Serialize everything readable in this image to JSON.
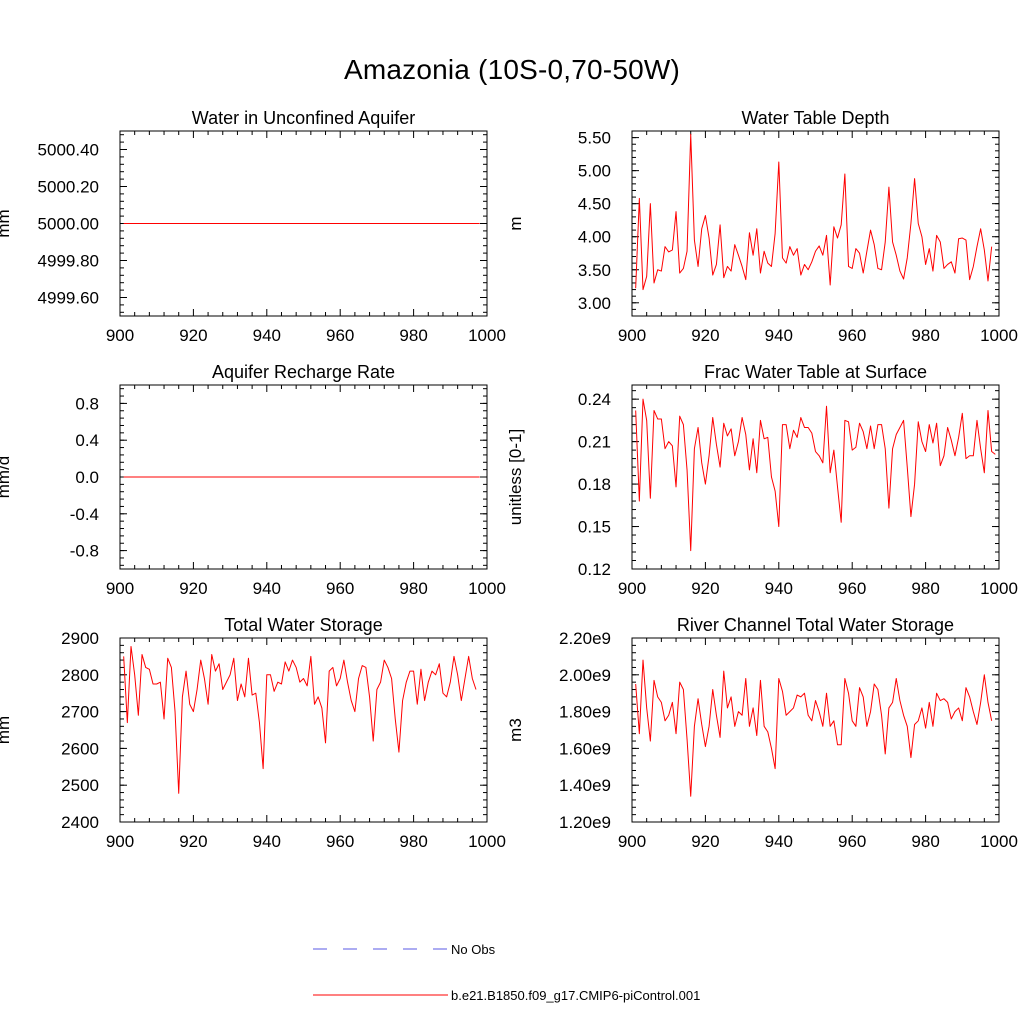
{
  "title": "Amazonia (10S-0,70-50W)",
  "colors": {
    "model": "#ff0000",
    "obs": "#5a5ae6",
    "axes": "#000000"
  },
  "legend": [
    {
      "label": "No Obs",
      "style": "dashed",
      "color": "#5a5ae6"
    },
    {
      "label": "b.e21.B1850.f09_g17.CMIP6-piControl.001",
      "style": "solid",
      "color": "#ff0000"
    }
  ],
  "chart_data": [
    {
      "type": "line",
      "title": "Water in Unconfined Aquifer",
      "ylabel": "mm",
      "xlim": [
        900,
        1000
      ],
      "ylim": [
        4999.5,
        5000.5
      ],
      "xticks": [
        900,
        920,
        940,
        960,
        980,
        1000
      ],
      "yticks": [
        4999.6,
        4999.8,
        5000.0,
        5000.2,
        5000.4
      ],
      "ytick_labels": [
        "4999.60",
        "4999.80",
        "5000.00",
        "5000.20",
        "5000.40"
      ],
      "x_start": 901,
      "series": [
        {
          "values": [
            5000,
            5000,
            5000,
            5000,
            5000,
            5000,
            5000,
            5000,
            5000,
            5000,
            5000,
            5000,
            5000,
            5000,
            5000,
            5000,
            5000,
            5000,
            5000,
            5000,
            5000,
            5000,
            5000,
            5000,
            5000,
            5000,
            5000,
            5000,
            5000,
            5000,
            5000,
            5000,
            5000,
            5000,
            5000,
            5000,
            5000,
            5000,
            5000,
            5000,
            5000,
            5000,
            5000,
            5000,
            5000,
            5000,
            5000,
            5000,
            5000,
            5000,
            5000,
            5000,
            5000,
            5000,
            5000,
            5000,
            5000,
            5000,
            5000,
            5000,
            5000,
            5000,
            5000,
            5000,
            5000,
            5000,
            5000,
            5000,
            5000,
            5000,
            5000,
            5000,
            5000,
            5000,
            5000,
            5000,
            5000,
            5000,
            5000,
            5000,
            5000,
            5000,
            5000,
            5000,
            5000,
            5000,
            5000,
            5000,
            5000,
            5000,
            5000,
            5000,
            5000,
            5000,
            5000,
            5000,
            5000,
            5000
          ]
        }
      ]
    },
    {
      "type": "line",
      "title": "Water Table Depth",
      "ylabel": "m",
      "xlim": [
        900,
        1000
      ],
      "ylim": [
        2.8,
        5.6
      ],
      "xticks": [
        900,
        920,
        940,
        960,
        980,
        1000
      ],
      "yticks": [
        3.0,
        3.5,
        4.0,
        4.5,
        5.0,
        5.5
      ],
      "ytick_labels": [
        "3.00",
        "3.50",
        "4.00",
        "4.50",
        "5.00",
        "5.50"
      ],
      "x_start": 901,
      "series": [
        {
          "values": [
            3.22,
            4.58,
            3.2,
            3.4,
            4.5,
            3.3,
            3.5,
            3.48,
            3.85,
            3.77,
            3.8,
            4.38,
            3.45,
            3.52,
            3.78,
            5.55,
            3.95,
            3.55,
            4.12,
            4.32,
            3.98,
            3.42,
            3.58,
            4.18,
            3.38,
            3.55,
            3.48,
            3.88,
            3.72,
            3.55,
            3.35,
            4.06,
            3.72,
            4.12,
            3.45,
            3.78,
            3.6,
            3.55,
            4.05,
            5.13,
            3.68,
            3.6,
            3.85,
            3.72,
            3.82,
            3.42,
            3.58,
            3.5,
            3.62,
            3.78,
            3.86,
            3.72,
            4.02,
            3.27,
            4.15,
            3.98,
            4.18,
            4.95,
            3.55,
            3.52,
            3.82,
            3.75,
            3.45,
            3.78,
            4.1,
            3.88,
            3.52,
            3.5,
            3.92,
            4.75,
            3.92,
            3.72,
            3.48,
            3.36,
            3.68,
            4.2,
            4.88,
            4.2,
            4.0,
            3.58,
            3.82,
            3.48,
            4.02,
            3.92,
            3.52,
            3.58,
            3.62,
            3.45,
            3.97,
            3.98,
            3.95,
            3.35,
            3.55,
            3.85,
            4.12,
            3.8,
            3.33,
            3.85
          ]
        }
      ]
    },
    {
      "type": "line",
      "title": "Aquifer Recharge Rate",
      "ylabel": "mm/d",
      "xlim": [
        900,
        1000
      ],
      "ylim": [
        -1.0,
        1.0
      ],
      "xticks": [
        900,
        920,
        940,
        960,
        980,
        1000
      ],
      "yticks": [
        -0.8,
        -0.4,
        0.0,
        0.4,
        0.8
      ],
      "ytick_labels": [
        "-0.8",
        "-0.4",
        "0.0",
        "0.4",
        "0.8"
      ],
      "x_start": 901,
      "series": [
        {
          "values": [
            0,
            0,
            0,
            0,
            0,
            0,
            0,
            0,
            0,
            0,
            0,
            0,
            0,
            0,
            0,
            0,
            0,
            0,
            0,
            0,
            0,
            0,
            0,
            0,
            0,
            0,
            0,
            0,
            0,
            0,
            0,
            0,
            0,
            0,
            0,
            0,
            0,
            0,
            0,
            0,
            0,
            0,
            0,
            0,
            0,
            0,
            0,
            0,
            0,
            0,
            0,
            0,
            0,
            0,
            0,
            0,
            0,
            0,
            0,
            0,
            0,
            0,
            0,
            0,
            0,
            0,
            0,
            0,
            0,
            0,
            0,
            0,
            0,
            0,
            0,
            0,
            0,
            0,
            0,
            0,
            0,
            0,
            0,
            0,
            0,
            0,
            0,
            0,
            0,
            0,
            0,
            0,
            0,
            0,
            0,
            0,
            0,
            0
          ]
        }
      ]
    },
    {
      "type": "line",
      "title": "Frac Water Table at Surface",
      "ylabel": "unitless [0-1]",
      "xlim": [
        900,
        1000
      ],
      "ylim": [
        0.12,
        0.25
      ],
      "xticks": [
        900,
        920,
        940,
        960,
        980,
        1000
      ],
      "yticks": [
        0.12,
        0.15,
        0.18,
        0.21,
        0.24
      ],
      "ytick_labels": [
        "0.12",
        "0.15",
        "0.18",
        "0.21",
        "0.24"
      ],
      "x_start": 901,
      "series": [
        {
          "values": [
            0.232,
            0.168,
            0.24,
            0.225,
            0.17,
            0.232,
            0.226,
            0.226,
            0.205,
            0.21,
            0.207,
            0.178,
            0.228,
            0.222,
            0.19,
            0.133,
            0.205,
            0.22,
            0.195,
            0.18,
            0.2,
            0.227,
            0.208,
            0.192,
            0.223,
            0.214,
            0.219,
            0.2,
            0.21,
            0.227,
            0.215,
            0.19,
            0.212,
            0.188,
            0.225,
            0.212,
            0.213,
            0.185,
            0.175,
            0.15,
            0.222,
            0.222,
            0.205,
            0.218,
            0.213,
            0.227,
            0.22,
            0.22,
            0.216,
            0.203,
            0.2,
            0.195,
            0.235,
            0.188,
            0.204,
            0.178,
            0.153,
            0.225,
            0.224,
            0.204,
            0.206,
            0.223,
            0.217,
            0.205,
            0.221,
            0.205,
            0.222,
            0.222,
            0.205,
            0.163,
            0.205,
            0.215,
            0.22,
            0.225,
            0.192,
            0.157,
            0.18,
            0.224,
            0.21,
            0.203,
            0.222,
            0.209,
            0.223,
            0.193,
            0.2,
            0.22,
            0.211,
            0.2,
            0.213,
            0.23,
            0.198,
            0.2,
            0.2,
            0.225,
            0.205,
            0.188,
            0.232,
            0.203,
            0.201
          ]
        }
      ]
    },
    {
      "type": "line",
      "title": "Total Water Storage",
      "ylabel": "mm",
      "xlim": [
        900,
        1000
      ],
      "ylim": [
        2400,
        2900
      ],
      "xticks": [
        900,
        920,
        940,
        960,
        980,
        1000
      ],
      "yticks": [
        2400,
        2500,
        2600,
        2700,
        2800,
        2900
      ],
      "ytick_labels": [
        "2400",
        "2500",
        "2600",
        "2700",
        "2800",
        "2900"
      ],
      "x_start": 901,
      "series": [
        {
          "values": [
            2850,
            2670,
            2877,
            2800,
            2690,
            2855,
            2820,
            2815,
            2775,
            2775,
            2780,
            2680,
            2845,
            2820,
            2700,
            2478,
            2740,
            2810,
            2720,
            2700,
            2760,
            2840,
            2790,
            2720,
            2855,
            2810,
            2830,
            2760,
            2780,
            2800,
            2845,
            2730,
            2775,
            2740,
            2845,
            2745,
            2750,
            2670,
            2545,
            2800,
            2800,
            2755,
            2780,
            2775,
            2835,
            2810,
            2840,
            2820,
            2780,
            2790,
            2770,
            2850,
            2720,
            2740,
            2710,
            2615,
            2810,
            2820,
            2770,
            2790,
            2840,
            2780,
            2730,
            2700,
            2790,
            2825,
            2820,
            2740,
            2620,
            2760,
            2780,
            2840,
            2820,
            2790,
            2680,
            2590,
            2730,
            2780,
            2810,
            2810,
            2720,
            2815,
            2730,
            2780,
            2810,
            2800,
            2830,
            2750,
            2740,
            2780,
            2850,
            2800,
            2730,
            2790,
            2850,
            2790,
            2760
          ]
        }
      ]
    },
    {
      "type": "line",
      "title": "River Channel Total Water Storage",
      "ylabel": "m3",
      "xlim": [
        900,
        1000
      ],
      "ylim": [
        1200000000.0,
        2200000000.0
      ],
      "xticks": [
        900,
        920,
        940,
        960,
        980,
        1000
      ],
      "yticks": [
        1200000000.0,
        1400000000.0,
        1600000000.0,
        1800000000.0,
        2000000000.0,
        2200000000.0
      ],
      "ytick_labels": [
        "1.20e9",
        "1.40e9",
        "1.60e9",
        "1.80e9",
        "2.00e9",
        "2.20e9"
      ],
      "x_start": 901,
      "series": [
        {
          "values": [
            1950000000.0,
            1680000000.0,
            2080000000.0,
            1820000000.0,
            1640000000.0,
            1970000000.0,
            1880000000.0,
            1850000000.0,
            1750000000.0,
            1780000000.0,
            1850000000.0,
            1680000000.0,
            1960000000.0,
            1920000000.0,
            1650000000.0,
            1340000000.0,
            1720000000.0,
            1870000000.0,
            1730000000.0,
            1610000000.0,
            1720000000.0,
            1920000000.0,
            1780000000.0,
            1660000000.0,
            2020000000.0,
            1820000000.0,
            1880000000.0,
            1720000000.0,
            1800000000.0,
            1780000000.0,
            1980000000.0,
            1720000000.0,
            1820000000.0,
            1670000000.0,
            1970000000.0,
            1720000000.0,
            1690000000.0,
            1600000000.0,
            1490000000.0,
            1980000000.0,
            1910000000.0,
            1780000000.0,
            1800000000.0,
            1820000000.0,
            1890000000.0,
            1880000000.0,
            1900000000.0,
            1780000000.0,
            1750000000.0,
            1860000000.0,
            1800000000.0,
            1720000000.0,
            1900000000.0,
            1720000000.0,
            1750000000.0,
            1620000000.0,
            1620000000.0,
            1980000000.0,
            1900000000.0,
            1750000000.0,
            1720000000.0,
            1930000000.0,
            1880000000.0,
            1720000000.0,
            1800000000.0,
            1950000000.0,
            1920000000.0,
            1780000000.0,
            1570000000.0,
            1820000000.0,
            1850000000.0,
            1980000000.0,
            1860000000.0,
            1780000000.0,
            1720000000.0,
            1550000000.0,
            1730000000.0,
            1750000000.0,
            1820000000.0,
            1710000000.0,
            1850000000.0,
            1720000000.0,
            1900000000.0,
            1860000000.0,
            1870000000.0,
            1850000000.0,
            1760000000.0,
            1800000000.0,
            1820000000.0,
            1750000000.0,
            1930000000.0,
            1880000000.0,
            1800000000.0,
            1730000000.0,
            1850000000.0,
            2000000000.0,
            1850000000.0,
            1750000000.0
          ]
        }
      ]
    }
  ]
}
